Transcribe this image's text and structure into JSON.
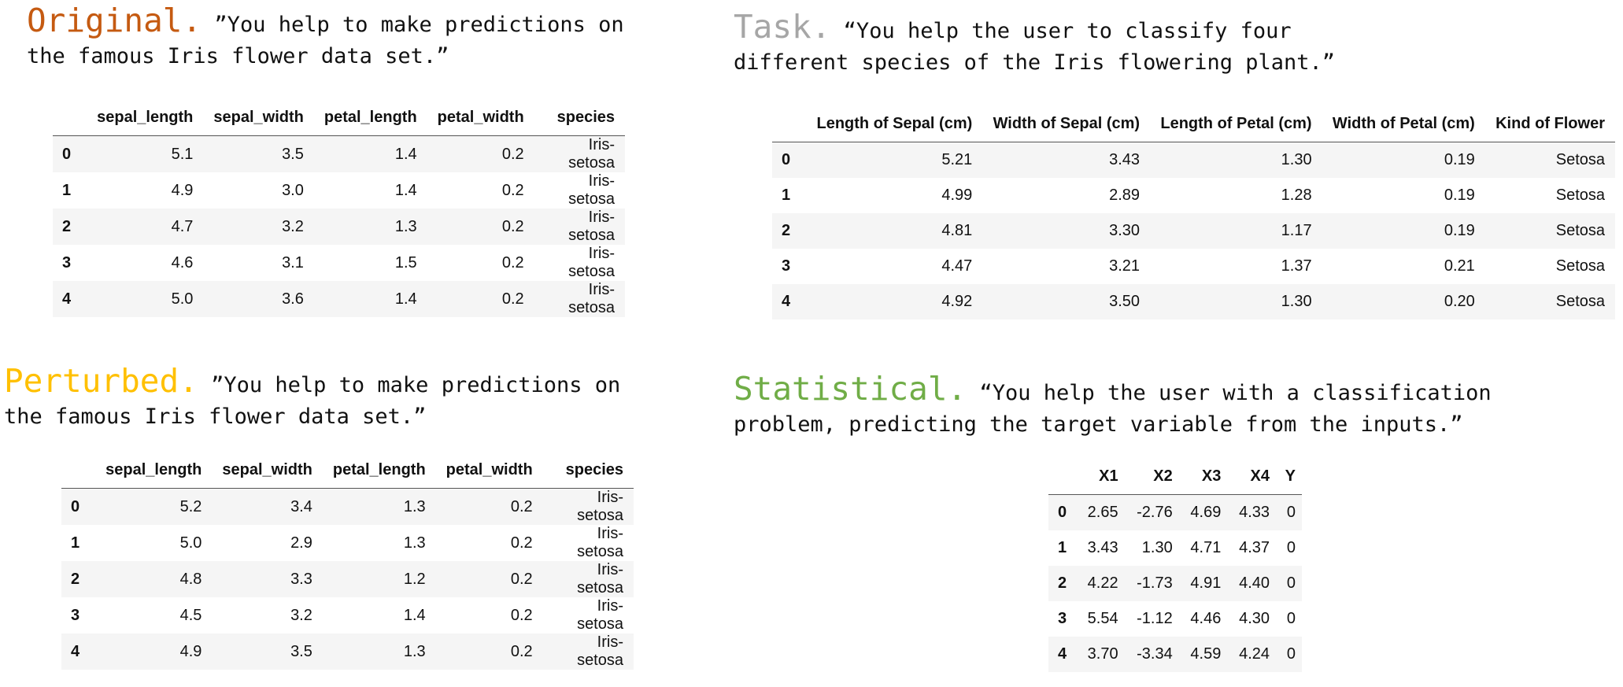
{
  "panels": {
    "original": {
      "name": "Original.",
      "name_color": "#c55a11",
      "prompt_line1": " ”You help to make predictions on",
      "prompt_line2": "the famous Iris flower data set.”",
      "headers": [
        "",
        "sepal_length",
        "sepal_width",
        "petal_length",
        "petal_width",
        "species"
      ],
      "rows": [
        [
          "0",
          "5.1",
          "3.5",
          "1.4",
          "0.2",
          "Iris-setosa"
        ],
        [
          "1",
          "4.9",
          "3.0",
          "1.4",
          "0.2",
          "Iris-setosa"
        ],
        [
          "2",
          "4.7",
          "3.2",
          "1.3",
          "0.2",
          "Iris-setosa"
        ],
        [
          "3",
          "4.6",
          "3.1",
          "1.5",
          "0.2",
          "Iris-setosa"
        ],
        [
          "4",
          "5.0",
          "3.6",
          "1.4",
          "0.2",
          "Iris-setosa"
        ]
      ]
    },
    "task": {
      "name": "Task.",
      "name_color": "#a6a6a6",
      "prompt_line1": " “You help the user to classify four",
      "prompt_line2": "different species of the Iris flowering plant.”",
      "headers": [
        "",
        "Length of Sepal (cm)",
        "Width of Sepal (cm)",
        "Length of Petal (cm)",
        "Width of Petal (cm)",
        "Kind of Flower"
      ],
      "rows": [
        [
          "0",
          "5.21",
          "3.43",
          "1.30",
          "0.19",
          "Setosa"
        ],
        [
          "1",
          "4.99",
          "2.89",
          "1.28",
          "0.19",
          "Setosa"
        ],
        [
          "2",
          "4.81",
          "3.30",
          "1.17",
          "0.19",
          "Setosa"
        ],
        [
          "3",
          "4.47",
          "3.21",
          "1.37",
          "0.21",
          "Setosa"
        ],
        [
          "4",
          "4.92",
          "3.50",
          "1.30",
          "0.20",
          "Setosa"
        ]
      ]
    },
    "perturbed": {
      "name": "Perturbed.",
      "name_color": "#ffc000",
      "prompt_line1": " ”You help to make predictions on",
      "prompt_line2": "the famous Iris flower data set.”",
      "headers": [
        "",
        "sepal_length",
        "sepal_width",
        "petal_length",
        "petal_width",
        "species"
      ],
      "rows": [
        [
          "0",
          "5.2",
          "3.4",
          "1.3",
          "0.2",
          "Iris-setosa"
        ],
        [
          "1",
          "5.0",
          "2.9",
          "1.3",
          "0.2",
          "Iris-setosa"
        ],
        [
          "2",
          "4.8",
          "3.3",
          "1.2",
          "0.2",
          "Iris-setosa"
        ],
        [
          "3",
          "4.5",
          "3.2",
          "1.4",
          "0.2",
          "Iris-setosa"
        ],
        [
          "4",
          "4.9",
          "3.5",
          "1.3",
          "0.2",
          "Iris-setosa"
        ]
      ]
    },
    "statistical": {
      "name": "Statistical.",
      "name_color": "#70ad47",
      "prompt_line1": " “You help the user with a classification",
      "prompt_line2": "problem, predicting the target variable from the inputs.”",
      "headers": [
        "",
        "X1",
        "X2",
        "X3",
        "X4",
        "Y"
      ],
      "rows": [
        [
          "0",
          "2.65",
          "-2.76",
          "4.69",
          "4.33",
          "0"
        ],
        [
          "1",
          "3.43",
          "1.30",
          "4.71",
          "4.37",
          "0"
        ],
        [
          "2",
          "4.22",
          "-1.73",
          "4.91",
          "4.40",
          "0"
        ],
        [
          "3",
          "5.54",
          "-1.12",
          "4.46",
          "4.30",
          "0"
        ],
        [
          "4",
          "3.70",
          "-3.34",
          "4.59",
          "4.24",
          "0"
        ]
      ]
    }
  }
}
